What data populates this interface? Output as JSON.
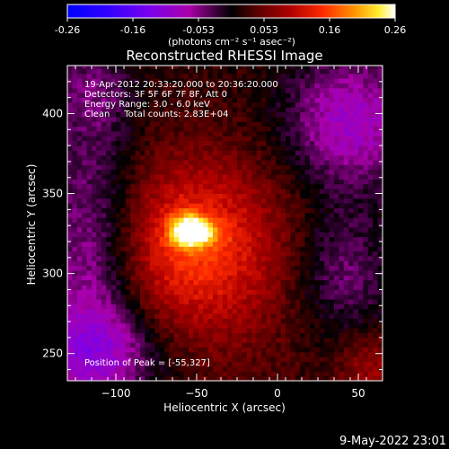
{
  "chart_data": {
    "type": "heatmap",
    "title": "Reconstructed RHESSI Image",
    "xlabel": "Heliocentric X (arcsec)",
    "ylabel": "Heliocentric Y (arcsec)",
    "xlim": [
      -130,
      65
    ],
    "ylim": [
      233,
      430
    ],
    "xticks": [
      -100,
      -50,
      0,
      50
    ],
    "yticks": [
      250,
      300,
      350,
      400
    ],
    "colorbar": {
      "ticks": [
        "-0.26",
        "-0.16",
        "-0.053",
        "0.053",
        "0.16",
        "0.26"
      ],
      "range": [
        -0.26,
        0.26
      ],
      "unit_label": "(photons cm⁻² s⁻¹ asec⁻²)"
    },
    "annotations": [
      "19-Apr-2012 20:33:20.000 to 20:36:20.000",
      "Detectors: 3F 5F 6F 7F 8F, Att 0",
      "Energy Range: 3.0 - 6.0 keV",
      "Clean     Total counts: 2.83E+04"
    ],
    "peak_label": "Position of Peak = [-55,327]",
    "peak": [
      -55,
      327
    ],
    "peak_value": 0.26,
    "grid": false
  },
  "footer": {
    "timestamp": "9-May-2022 23:01"
  }
}
